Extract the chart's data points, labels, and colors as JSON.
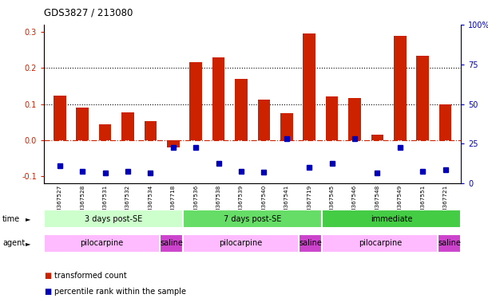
{
  "title": "GDS3827 / 213080",
  "samples": [
    "GSM367527",
    "GSM367528",
    "GSM367531",
    "GSM367532",
    "GSM367534",
    "GSM367718",
    "GSM367536",
    "GSM367538",
    "GSM367539",
    "GSM367540",
    "GSM367541",
    "GSM367719",
    "GSM367545",
    "GSM367546",
    "GSM367548",
    "GSM367549",
    "GSM367551",
    "GSM367721"
  ],
  "red_values": [
    0.123,
    0.09,
    0.045,
    0.077,
    0.052,
    -0.02,
    0.215,
    0.23,
    0.17,
    0.113,
    0.075,
    0.295,
    0.12,
    0.117,
    0.015,
    0.288,
    0.234,
    0.1
  ],
  "blue_values": [
    -0.07,
    -0.085,
    -0.09,
    -0.085,
    -0.09,
    -0.02,
    -0.02,
    -0.065,
    -0.085,
    -0.088,
    0.005,
    -0.075,
    -0.065,
    0.005,
    -0.09,
    -0.02,
    -0.085,
    -0.082
  ],
  "time_groups": [
    {
      "label": "3 days post-SE",
      "start": 0,
      "end": 6,
      "color": "#ccffcc"
    },
    {
      "label": "7 days post-SE",
      "start": 6,
      "end": 12,
      "color": "#66dd66"
    },
    {
      "label": "immediate",
      "start": 12,
      "end": 18,
      "color": "#44cc44"
    }
  ],
  "agent_groups": [
    {
      "label": "pilocarpine",
      "start": 0,
      "end": 5,
      "color": "#ffbbff"
    },
    {
      "label": "saline",
      "start": 5,
      "end": 6,
      "color": "#cc44cc"
    },
    {
      "label": "pilocarpine",
      "start": 6,
      "end": 11,
      "color": "#ffbbff"
    },
    {
      "label": "saline",
      "start": 11,
      "end": 12,
      "color": "#cc44cc"
    },
    {
      "label": "pilocarpine",
      "start": 12,
      "end": 17,
      "color": "#ffbbff"
    },
    {
      "label": "saline",
      "start": 17,
      "end": 18,
      "color": "#cc44cc"
    }
  ],
  "red_color": "#cc2200",
  "blue_color": "#0000bb",
  "ylim_left": [
    -0.12,
    0.32
  ],
  "ylim_right": [
    0,
    100
  ],
  "yticks_left": [
    -0.1,
    0.0,
    0.1,
    0.2,
    0.3
  ],
  "yticks_right": [
    0,
    25,
    50,
    75,
    100
  ],
  "hlines": [
    0.1,
    0.2
  ],
  "zero_line": 0.0,
  "legend_items": [
    {
      "label": "transformed count",
      "color": "#cc2200"
    },
    {
      "label": "percentile rank within the sample",
      "color": "#0000bb"
    }
  ]
}
